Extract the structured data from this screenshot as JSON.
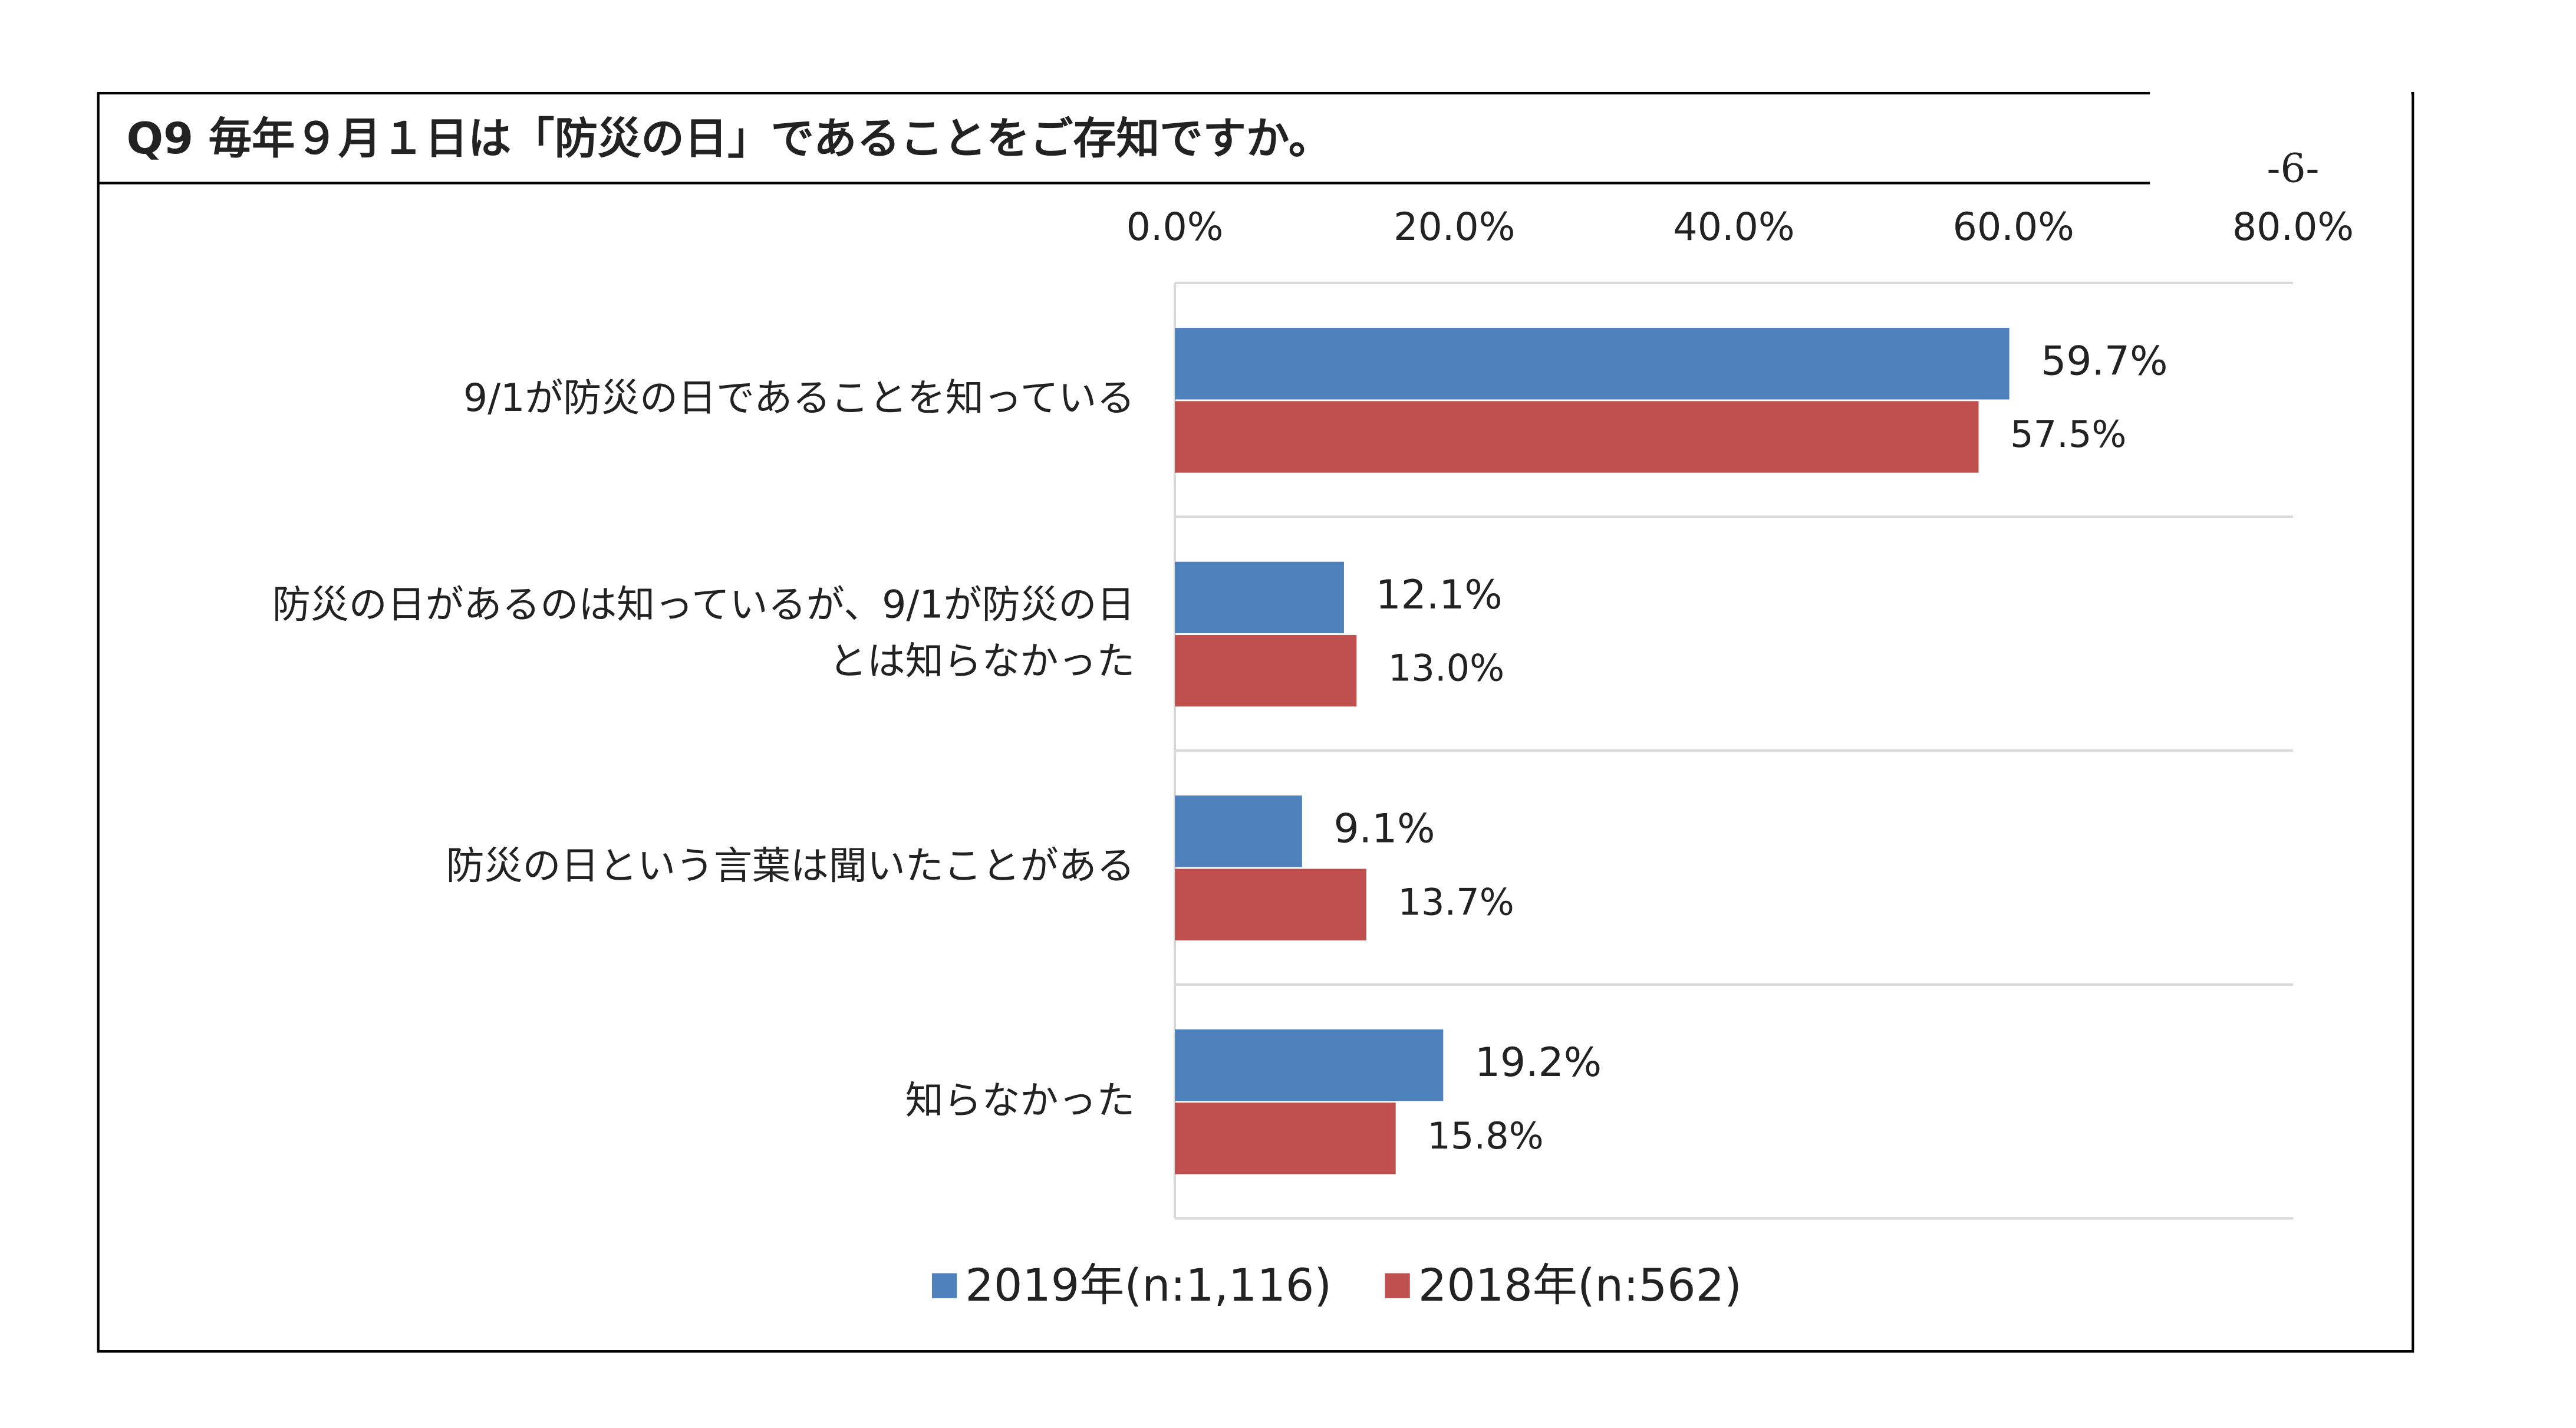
{
  "page_number": "-6-",
  "chart_data": {
    "type": "bar",
    "orientation": "horizontal",
    "title": "Q9  毎年９月１日は「防災の日」であることをご存知ですか。",
    "categories": [
      "9/1が防災の日であることを知っている",
      "防災の日があるのは知っているが、9/1が防災の日\nとは知らなかった",
      "防災の日という言葉は聞いたことがある",
      "知らなかった"
    ],
    "series": [
      {
        "name": "2019年(n:1,116)",
        "color": "#4f81bd",
        "values": [
          59.7,
          12.1,
          9.1,
          19.2
        ],
        "value_labels": [
          "59.7%",
          "12.1%",
          "9.1%",
          "19.2%"
        ]
      },
      {
        "name": "2018年(n:562)",
        "color": "#c0504d",
        "values": [
          57.5,
          13.0,
          13.7,
          15.8
        ],
        "value_labels": [
          "57.5%",
          "13.0%",
          "13.7%",
          "15.8%"
        ]
      }
    ],
    "xlim": [
      0,
      80
    ],
    "xticks": [
      {
        "value": 0,
        "label": "0.0%"
      },
      {
        "value": 20,
        "label": "20.0%"
      },
      {
        "value": 40,
        "label": "40.0%"
      },
      {
        "value": 60,
        "label": "60.0%"
      },
      {
        "value": 80,
        "label": "80.0%"
      }
    ],
    "grid": true,
    "legend": "bottom"
  }
}
